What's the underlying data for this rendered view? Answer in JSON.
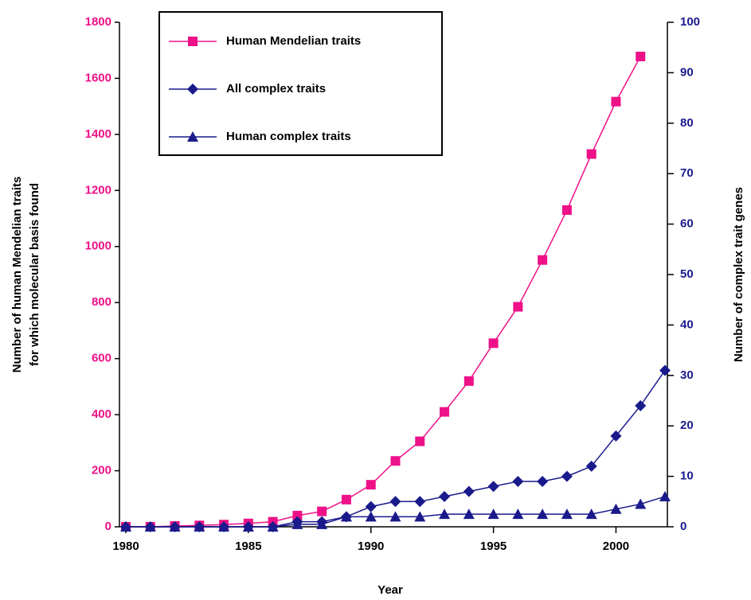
{
  "chart_data": {
    "type": "line",
    "xlabel": "Year",
    "ylabel": [
      "Number of human Mendelian traits",
      "for which molecular basis found"
    ],
    "y2label": "Number of complex trait genes",
    "x": [
      1980,
      1981,
      1982,
      1983,
      1984,
      1985,
      1986,
      1987,
      1988,
      1989,
      1990,
      1991,
      1992,
      1993,
      1994,
      1995,
      1996,
      1997,
      1998,
      1999,
      2000,
      2001,
      2002
    ],
    "xlim": [
      1980,
      2002
    ],
    "xticks": [
      1980,
      1985,
      1990,
      1995,
      2000
    ],
    "ylim": [
      0,
      1800
    ],
    "yticks": [
      0,
      200,
      400,
      600,
      800,
      1000,
      1200,
      1400,
      1600,
      1800
    ],
    "y2lim": [
      0,
      100
    ],
    "y2ticks": [
      0,
      10,
      20,
      30,
      40,
      50,
      60,
      70,
      80,
      90,
      100
    ],
    "legend": "upper left",
    "series": [
      {
        "name": "Human Mendelian traits",
        "color": "#ee1188",
        "marker": "square",
        "values": [
          0,
          0,
          3,
          5,
          8,
          12,
          18,
          40,
          55,
          97,
          150,
          235,
          305,
          410,
          520,
          655,
          785,
          952,
          1130,
          1330,
          1517,
          1678,
          null
        ]
      },
      {
        "name": "All complex traits",
        "color": "#1a1a8c",
        "marker": "diamond",
        "axis": "y2",
        "values": [
          0,
          0,
          0,
          0,
          0,
          0,
          0,
          1,
          1,
          2,
          4,
          5,
          5,
          6,
          7,
          8,
          9,
          9,
          10,
          12,
          18,
          24,
          31
        ]
      },
      {
        "name": "Human complex traits",
        "color": "#1a1a8c",
        "marker": "triangle",
        "axis": "y2",
        "values": [
          0,
          0,
          0,
          0,
          0,
          0,
          0,
          0.5,
          0.5,
          2,
          2,
          2,
          2,
          2.5,
          2.5,
          2.5,
          2.5,
          2.5,
          2.5,
          2.5,
          3.5,
          4.5,
          6
        ]
      }
    ]
  }
}
